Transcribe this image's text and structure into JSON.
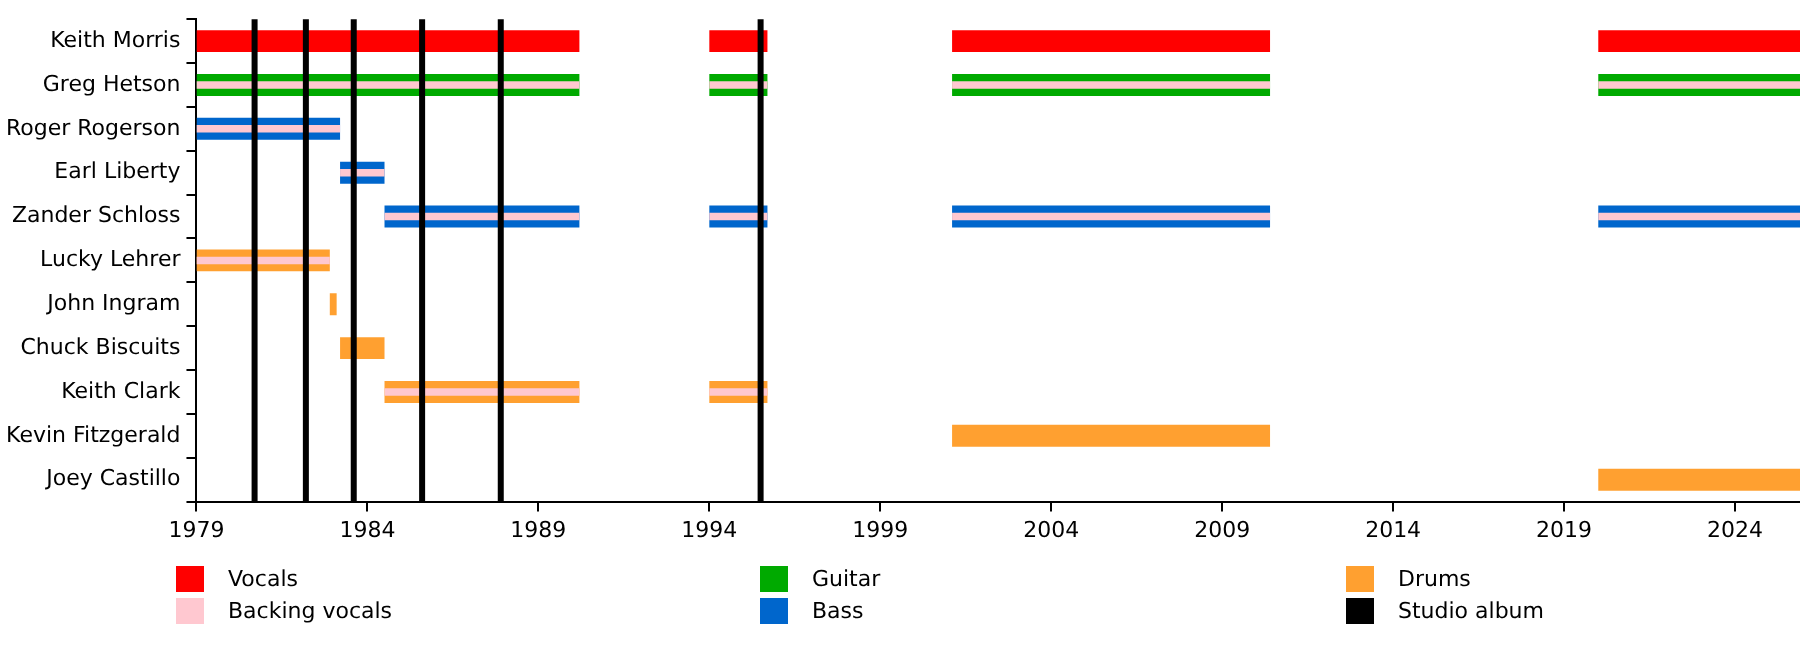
{
  "chart_data": {
    "type": "bar",
    "orientation": "horizontal",
    "legend": "bottom",
    "categories": [
      "Keith Morris",
      "Greg Hetson",
      "Roger Rogerson",
      "Earl Liberty",
      "Zander Schloss",
      "Lucky Lehrer",
      "John Ingram",
      "Chuck Biscuits",
      "Keith Clark",
      "Kevin Fitzgerald",
      "Joey Castillo"
    ],
    "xlim": [
      1979,
      2025.9
    ],
    "xticks": [
      1979,
      1984,
      1989,
      1994,
      1999,
      2004,
      2009,
      2014,
      2019,
      2024
    ],
    "series": [
      {
        "name": "Vocals",
        "color": "#ff0000",
        "base": [
          1979,
          null,
          null,
          null,
          null,
          null,
          null,
          null,
          null,
          null,
          null
        ],
        "values": [
          11.2,
          null,
          null,
          null,
          null,
          null,
          null,
          null,
          null,
          null,
          null
        ]
      },
      {
        "color": "#ff0000",
        "base": [
          1994,
          null,
          null,
          null,
          null,
          null,
          null,
          null,
          null,
          null,
          null
        ],
        "values": [
          1.7,
          null,
          null,
          null,
          null,
          null,
          null,
          null,
          null,
          null,
          null
        ]
      },
      {
        "color": "#ff0000",
        "base": [
          2001.1,
          null,
          null,
          null,
          null,
          null,
          null,
          null,
          null,
          null,
          null
        ],
        "values": [
          9.3,
          null,
          null,
          null,
          null,
          null,
          null,
          null,
          null,
          null,
          null
        ]
      },
      {
        "color": "#ff0000",
        "base": [
          2020,
          null,
          null,
          null,
          null,
          null,
          null,
          null,
          null,
          null,
          null
        ],
        "values": [
          5.9,
          null,
          null,
          null,
          null,
          null,
          null,
          null,
          null,
          null,
          null
        ]
      },
      {
        "name": "Guitar",
        "color": "#00aa00",
        "base": [
          null,
          1979,
          null,
          null,
          null,
          null,
          null,
          null,
          null,
          null,
          null
        ],
        "values": [
          null,
          11.2,
          null,
          null,
          null,
          null,
          null,
          null,
          null,
          null,
          null
        ]
      },
      {
        "color": "#00aa00",
        "base": [
          null,
          1994,
          null,
          null,
          null,
          null,
          null,
          null,
          null,
          null,
          null
        ],
        "values": [
          null,
          1.7,
          null,
          null,
          null,
          null,
          null,
          null,
          null,
          null,
          null
        ]
      },
      {
        "color": "#00aa00",
        "base": [
          null,
          2001.1,
          null,
          null,
          null,
          null,
          null,
          null,
          null,
          null,
          null
        ],
        "values": [
          null,
          9.3,
          null,
          null,
          null,
          null,
          null,
          null,
          null,
          null,
          null
        ]
      },
      {
        "color": "#00aa00",
        "base": [
          null,
          2020,
          null,
          null,
          null,
          null,
          null,
          null,
          null,
          null,
          null
        ],
        "values": [
          null,
          5.9,
          null,
          null,
          null,
          null,
          null,
          null,
          null,
          null,
          null
        ]
      },
      {
        "name": "Drums",
        "color": "#ffa030",
        "base": [
          null,
          null,
          null,
          null,
          null,
          1979,
          1982.9,
          1983.2,
          1984.5,
          2001.1,
          2020
        ],
        "values": [
          null,
          null,
          null,
          null,
          null,
          3.9,
          0.2,
          1.3,
          5.7,
          9.3,
          5.9
        ]
      },
      {
        "color": "#ffa030",
        "base": [
          null,
          null,
          null,
          null,
          null,
          null,
          null,
          null,
          1994,
          null,
          null
        ],
        "values": [
          null,
          null,
          null,
          null,
          null,
          null,
          null,
          null,
          1.7,
          null,
          null
        ]
      },
      {
        "name": "Backing vocals",
        "color": "#ffc8d0",
        "base": [
          null,
          1979,
          1979,
          1983.2,
          1984.5,
          1979,
          null,
          null,
          1984.5,
          null,
          null
        ],
        "values": [
          null,
          11.2,
          4.2,
          1.3,
          5.7,
          3.9,
          null,
          null,
          5.7,
          null,
          null
        ]
      },
      {
        "color": "#ffc8d0",
        "base": [
          null,
          1994,
          null,
          null,
          1994,
          null,
          null,
          null,
          1994,
          null,
          null
        ],
        "values": [
          null,
          1.7,
          null,
          null,
          1.7,
          null,
          null,
          null,
          1.7,
          null,
          null
        ]
      },
      {
        "color": "#ffc8d0",
        "base": [
          null,
          2001.1,
          null,
          null,
          2001.1,
          null,
          null,
          null,
          null,
          null,
          null
        ],
        "values": [
          null,
          9.3,
          null,
          null,
          9.3,
          null,
          null,
          null,
          null,
          null,
          null
        ]
      },
      {
        "color": "#ffc8d0",
        "base": [
          null,
          2020,
          null,
          null,
          2020,
          null,
          null,
          null,
          null,
          null,
          null
        ],
        "values": [
          null,
          5.9,
          null,
          null,
          5.9,
          null,
          null,
          null,
          null,
          null,
          null
        ]
      },
      {
        "name": "Bass",
        "color": "#0066cc",
        "base": [
          null,
          null,
          1979,
          1983.2,
          1984.5,
          null,
          null,
          null,
          null,
          null,
          null
        ],
        "values": [
          null,
          null,
          4.2,
          1.3,
          5.7,
          null,
          null,
          null,
          null,
          null,
          null
        ]
      },
      {
        "color": "#0066cc",
        "base": [
          null,
          null,
          null,
          null,
          1994,
          null,
          null,
          null,
          null,
          null,
          null
        ],
        "values": [
          null,
          null,
          null,
          null,
          1.7,
          null,
          null,
          null,
          null,
          null,
          null
        ]
      },
      {
        "color": "#0066cc",
        "base": [
          null,
          null,
          null,
          null,
          2001.1,
          null,
          null,
          null,
          null,
          null,
          null
        ],
        "values": [
          null,
          null,
          null,
          null,
          9.3,
          null,
          null,
          null,
          null,
          null,
          null
        ]
      },
      {
        "color": "#0066cc",
        "base": [
          null,
          null,
          null,
          null,
          2020,
          null,
          null,
          null,
          null,
          null,
          null
        ],
        "values": [
          null,
          null,
          null,
          null,
          5.9,
          null,
          null,
          null,
          null,
          null,
          null
        ]
      }
    ],
    "ref_lines": [
      {
        "axis": "x",
        "value": 1980.7,
        "label": "Studio album",
        "color": "#000000"
      },
      {
        "axis": "x",
        "value": 1982.2,
        "color": "#000000"
      },
      {
        "axis": "x",
        "value": 1983.6,
        "color": "#000000"
      },
      {
        "axis": "x",
        "value": 1985.6,
        "color": "#000000"
      },
      {
        "axis": "x",
        "value": 1987.9,
        "color": "#000000"
      },
      {
        "axis": "x",
        "value": 1995.5,
        "color": "#000000"
      }
    ]
  }
}
